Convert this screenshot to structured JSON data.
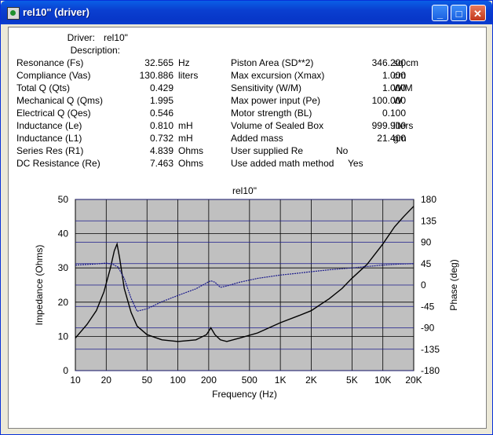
{
  "window": {
    "title": "rel10\" (driver)",
    "minimize": "_",
    "maximize": "□",
    "close": "✕",
    "icon": "app-icon"
  },
  "header": {
    "driver_label": "Driver:",
    "driver_value": "rel10\"",
    "description_label": "Description:"
  },
  "params_left": [
    {
      "label": "Resonance (Fs)",
      "value": "32.565",
      "unit": "Hz"
    },
    {
      "label": "Compliance (Vas)",
      "value": "130.886",
      "unit": "liters"
    },
    {
      "label": "Total Q (Qts)",
      "value": "0.429",
      "unit": ""
    },
    {
      "label": "Mechanical Q (Qms)",
      "value": "1.995",
      "unit": ""
    },
    {
      "label": "Electrical Q (Qes)",
      "value": "0.546",
      "unit": ""
    },
    {
      "label": "Inductance (Le)",
      "value": "0.810",
      "unit": "mH"
    },
    {
      "label": "Inductance (L1)",
      "value": "0.732",
      "unit": "mH"
    },
    {
      "label": "Series Res (R1)",
      "value": "4.839",
      "unit": "Ohms"
    },
    {
      "label": "DC Resistance (Re)",
      "value": "7.463",
      "unit": "Ohms"
    }
  ],
  "params_right": [
    {
      "label": "Piston Area (SD**2)",
      "value": "346.200",
      "unit": "sq cm"
    },
    {
      "label": "Max excursion (Xmax)",
      "value": "1.000",
      "unit": "cm"
    },
    {
      "label": "Sensitivity (W/M)",
      "value": "1.000",
      "unit": "W/M"
    },
    {
      "label": "Max power input (Pe)",
      "value": "100.000",
      "unit": "W"
    },
    {
      "label": "Motor strength (BL)",
      "value": "0.100",
      "unit": ""
    },
    {
      "label": "Volume of Sealed Box",
      "value": "999.900",
      "unit": "liters"
    },
    {
      "label": "Added mass",
      "value": "21.400",
      "unit": "gm"
    },
    {
      "label": "User supplied Re",
      "value": "No",
      "unit": ""
    },
    {
      "label": "Use added math method",
      "value": "Yes",
      "unit": ""
    }
  ],
  "chart_data": {
    "type": "line",
    "title": "rel10\"",
    "xlabel": "Frequency (Hz)",
    "ylabel": "Impedance (Ohms)",
    "y2label": "Phase (deg)",
    "xscale": "log",
    "xlim": [
      10,
      20000
    ],
    "ylim": [
      0,
      50
    ],
    "y2lim": [
      -180,
      180
    ],
    "xticks": [
      "10",
      "20",
      "50",
      "100",
      "200",
      "500",
      "1K",
      "2K",
      "5K",
      "10K",
      "20K"
    ],
    "xtick_values": [
      10,
      20,
      50,
      100,
      200,
      500,
      1000,
      2000,
      5000,
      10000,
      20000
    ],
    "yticks": [
      "0",
      "10",
      "20",
      "30",
      "40",
      "50"
    ],
    "y2ticks": [
      "-180",
      "-135",
      "-90",
      "-45",
      "0",
      "45",
      "90",
      "135",
      "180"
    ],
    "grid": true,
    "plot_background": "#c0c0c0",
    "series": [
      {
        "axis": "left",
        "color": "#000000",
        "x": [
          10,
          13,
          16,
          19,
          22,
          24,
          25.5,
          27,
          30,
          35,
          40,
          50,
          70,
          100,
          150,
          190,
          210,
          230,
          260,
          300,
          400,
          600,
          1000,
          1500,
          2000,
          3000,
          4000,
          5000,
          7000,
          10000,
          13000,
          16000,
          20000
        ],
        "y": [
          9.5,
          13.5,
          17.5,
          23,
          30,
          35,
          37,
          33,
          24,
          17,
          13,
          10.5,
          9,
          8.5,
          9,
          10.5,
          12.5,
          10.5,
          9,
          8.5,
          9.5,
          11,
          14,
          16,
          17.5,
          21,
          24,
          27,
          31,
          37,
          42,
          45,
          48
        ]
      },
      {
        "axis": "right",
        "color": "#1a1a8c",
        "x": [
          10,
          15,
          20,
          23,
          26,
          30,
          35,
          40,
          50,
          70,
          100,
          150,
          200,
          210,
          230,
          260,
          300,
          400,
          600,
          1000,
          1500,
          2000,
          3000,
          5000,
          7000,
          10000,
          14000,
          20000
        ],
        "y": [
          42,
          44,
          46,
          44,
          38,
          14,
          -28,
          -55,
          -50,
          -35,
          -22,
          -8,
          7,
          9,
          6,
          -5,
          -2,
          6,
          14,
          21,
          25,
          28,
          32,
          36,
          39,
          42,
          44,
          45
        ]
      }
    ]
  }
}
